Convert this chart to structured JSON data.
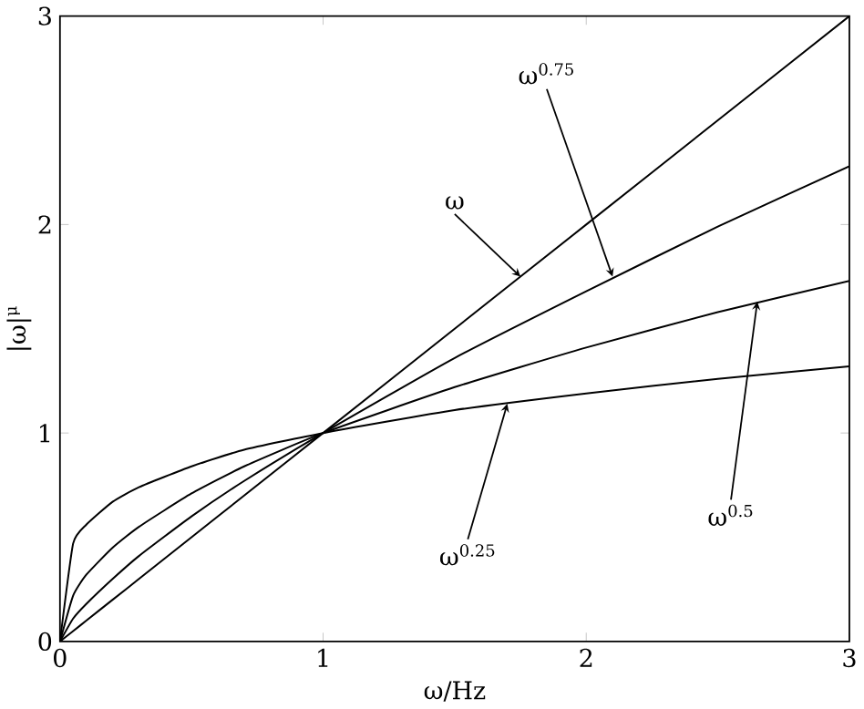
{
  "chart_data": {
    "type": "line",
    "xlabel": "ω/Hz",
    "ylabel": "|ω|$^{μ}$",
    "x": [
      0,
      0.05,
      0.1,
      0.2,
      0.3,
      0.5,
      0.7,
      1,
      1.5,
      2,
      2.5,
      3
    ],
    "series": [
      {
        "color": "#000000",
        "values": [
          0,
          0.05,
          0.1,
          0.2,
          0.3,
          0.5,
          0.7,
          1,
          1.5,
          2,
          2.5,
          3
        ]
      },
      {
        "color": "#000000",
        "values": [
          0,
          0.11,
          0.18,
          0.3,
          0.41,
          0.6,
          0.77,
          1,
          1.36,
          1.68,
          1.99,
          2.28
        ]
      },
      {
        "color": "#000000",
        "values": [
          0,
          0.22,
          0.32,
          0.45,
          0.55,
          0.71,
          0.84,
          1,
          1.22,
          1.41,
          1.58,
          1.73
        ]
      },
      {
        "color": "#000000",
        "values": [
          0,
          0.47,
          0.56,
          0.67,
          0.74,
          0.84,
          0.92,
          1,
          1.11,
          1.19,
          1.26,
          1.32
        ]
      }
    ],
    "annotations": [
      {
        "text": "ω",
        "x": 1.75,
        "y": 1.75
      },
      {
        "text": "ω$^{0.75}$",
        "x": 2.1,
        "y": 1.75
      },
      {
        "text": "ω$^{0.5}$",
        "x": 2.65,
        "y": 1.63
      },
      {
        "text": "ω$^{0.25}$",
        "x": 1.7,
        "y": 1.14
      }
    ],
    "xlim": [
      0,
      3
    ],
    "ylim": [
      0,
      3
    ],
    "xticks": [
      0,
      1,
      2,
      3
    ],
    "yticks": [
      0,
      1,
      2,
      3
    ],
    "grid": false,
    "marker": "none",
    "line_style": "solid"
  }
}
